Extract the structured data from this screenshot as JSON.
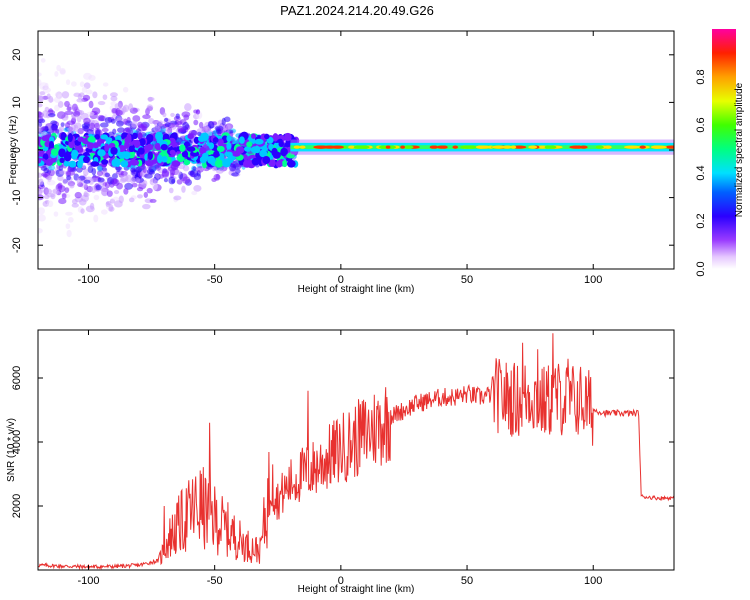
{
  "chart_data": [
    {
      "type": "heatmap",
      "title": "PAZ1.2024.214.20.49.G26",
      "xlabel": "Height of straight line (km)",
      "ylabel": "Frequency (Hz)",
      "xlim": [
        -120,
        132
      ],
      "ylim": [
        -25,
        25
      ],
      "x_ticks": [
        "-100",
        "-50",
        "0",
        "50",
        "100"
      ],
      "y_ticks": [
        "-20",
        "-10",
        "0",
        "10",
        "20"
      ],
      "colorbar": {
        "label": "Normalized spectral amplitude",
        "range": [
          0,
          1
        ],
        "ticks": [
          "0.0",
          "0.2",
          "0.4",
          "0.6",
          "0.8"
        ]
      },
      "grid": false,
      "description_of_content": "Scattered low-amplitude noise below about -25 km; a narrow high-amplitude line near 0 Hz above about -20 km.",
      "scatter_region_x": [
        -120,
        -25
      ],
      "line_region_x": [
        -20,
        132
      ],
      "line_frequency_hz": 0.6
    },
    {
      "type": "line",
      "xlabel": "Height of straight line (km)",
      "ylabel": "SNR (10 * v/v)",
      "xlim": [
        -120,
        132
      ],
      "ylim": [
        0,
        7500
      ],
      "x_ticks": [
        "-100",
        "-50",
        "0",
        "50",
        "100"
      ],
      "y_ticks": [
        "2000",
        "4000",
        "6000"
      ],
      "series_color": "#e8312f",
      "grid": false,
      "x": [
        -120,
        -110,
        -100,
        -90,
        -80,
        -72,
        -68,
        -62,
        -56,
        -50,
        -44,
        -38,
        -32,
        -28,
        -25,
        -20,
        -15,
        -10,
        -5,
        0,
        5,
        10,
        15,
        20,
        25,
        30,
        35,
        40,
        45,
        50,
        55,
        60,
        65,
        70,
        75,
        80,
        85,
        90,
        95,
        100,
        105,
        110,
        115,
        118,
        119,
        125,
        132
      ],
      "y": [
        150,
        120,
        100,
        110,
        150,
        300,
        1000,
        1600,
        2000,
        1600,
        1200,
        800,
        600,
        2600,
        2200,
        2700,
        3000,
        3200,
        3500,
        3800,
        4000,
        4300,
        4500,
        4800,
        5000,
        5200,
        5300,
        5400,
        5400,
        5500,
        5400,
        5500,
        5400,
        5300,
        5500,
        5200,
        5400,
        5300,
        5300,
        5000,
        4900,
        4900,
        4900,
        4900,
        2300,
        2250,
        2250
      ],
      "spikes": [
        {
          "x": -52,
          "y": 4600
        },
        {
          "x": -70,
          "y": 2000
        },
        {
          "x": -27,
          "y": 3300
        },
        {
          "x": -13,
          "y": 5600
        },
        {
          "x": 72,
          "y": 7100
        },
        {
          "x": 78,
          "y": 6900
        },
        {
          "x": 84,
          "y": 7400
        },
        {
          "x": 90,
          "y": 6600
        }
      ]
    }
  ]
}
